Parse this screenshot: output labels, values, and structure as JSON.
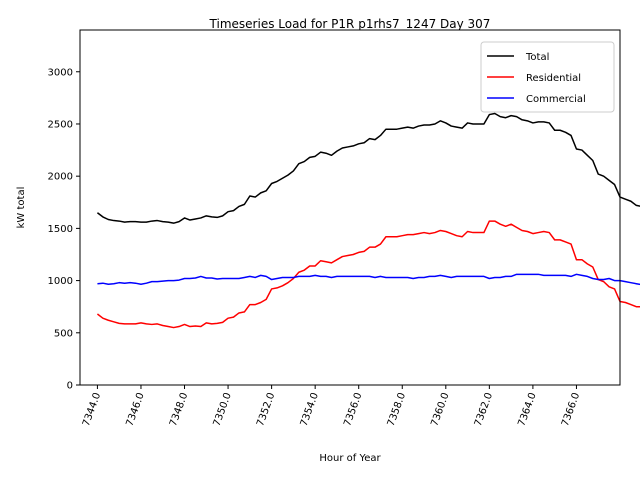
{
  "chart_data": {
    "type": "line",
    "title": "Timeseries Load for P1R p1rhs7_1247  Day 307",
    "xlabel": "Hour of Year",
    "ylabel": "kW total",
    "xlim": [
      7343.2,
      7368.0
    ],
    "ylim": [
      0,
      3400
    ],
    "x_ticks": [
      7344,
      7346,
      7348,
      7350,
      7352,
      7354,
      7356,
      7358,
      7360,
      7362,
      7364,
      7366
    ],
    "x_tick_labels": [
      "7344.0",
      "7346.0",
      "7348.0",
      "7350.0",
      "7352.0",
      "7354.0",
      "7356.0",
      "7358.0",
      "7360.0",
      "7362.0",
      "7364.0",
      "7366.0"
    ],
    "y_ticks": [
      0,
      500,
      1000,
      1500,
      2000,
      2500,
      3000
    ],
    "y_tick_labels": [
      "0",
      "500",
      "1000",
      "1500",
      "2000",
      "2500",
      "3000"
    ],
    "legend_position": "top-right",
    "x_start": 7344.0,
    "x_step": 0.25,
    "series": [
      {
        "name": "Total",
        "color": "#000000",
        "values": [
          1650,
          1610,
          1585,
          1575,
          1570,
          1560,
          1565,
          1565,
          1560,
          1560,
          1570,
          1575,
          1565,
          1560,
          1550,
          1565,
          1600,
          1580,
          1590,
          1600,
          1620,
          1610,
          1605,
          1620,
          1660,
          1670,
          1710,
          1730,
          1810,
          1800,
          1840,
          1860,
          1930,
          1950,
          1980,
          2010,
          2050,
          2120,
          2140,
          2180,
          2190,
          2230,
          2220,
          2200,
          2240,
          2270,
          2280,
          2290,
          2310,
          2320,
          2360,
          2350,
          2390,
          2450,
          2450,
          2450,
          2460,
          2470,
          2460,
          2480,
          2490,
          2490,
          2500,
          2530,
          2510,
          2480,
          2470,
          2460,
          2510,
          2500,
          2500,
          2500,
          2590,
          2600,
          2570,
          2560,
          2580,
          2570,
          2540,
          2530,
          2510,
          2520,
          2520,
          2510,
          2440,
          2440,
          2420,
          2390,
          2260,
          2250,
          2200,
          2150,
          2020,
          2000,
          1960,
          1920,
          1800,
          1780,
          1760,
          1720,
          1710
        ]
      },
      {
        "name": "Residential",
        "color": "#ff0000",
        "values": [
          680,
          640,
          620,
          605,
          590,
          585,
          585,
          585,
          595,
          585,
          580,
          585,
          570,
          560,
          550,
          560,
          580,
          560,
          565,
          560,
          595,
          585,
          590,
          600,
          640,
          650,
          690,
          700,
          770,
          770,
          790,
          820,
          920,
          930,
          950,
          980,
          1020,
          1080,
          1100,
          1140,
          1140,
          1190,
          1180,
          1170,
          1200,
          1230,
          1240,
          1250,
          1270,
          1280,
          1320,
          1320,
          1350,
          1420,
          1420,
          1420,
          1430,
          1440,
          1440,
          1450,
          1460,
          1450,
          1460,
          1480,
          1470,
          1450,
          1430,
          1420,
          1470,
          1460,
          1460,
          1460,
          1570,
          1570,
          1540,
          1520,
          1540,
          1510,
          1480,
          1470,
          1450,
          1460,
          1470,
          1460,
          1390,
          1390,
          1370,
          1350,
          1200,
          1200,
          1160,
          1130,
          1010,
          990,
          940,
          920,
          800,
          790,
          770,
          750,
          750
        ]
      },
      {
        "name": "Commercial",
        "color": "#0000ff",
        "values": [
          970,
          975,
          965,
          970,
          980,
          975,
          980,
          975,
          965,
          975,
          990,
          990,
          995,
          1000,
          1000,
          1005,
          1020,
          1020,
          1025,
          1040,
          1025,
          1025,
          1015,
          1020,
          1020,
          1020,
          1020,
          1030,
          1040,
          1030,
          1050,
          1040,
          1010,
          1020,
          1030,
          1030,
          1030,
          1040,
          1040,
          1040,
          1050,
          1040,
          1040,
          1030,
          1040,
          1040,
          1040,
          1040,
          1040,
          1040,
          1040,
          1030,
          1040,
          1030,
          1030,
          1030,
          1030,
          1030,
          1020,
          1030,
          1030,
          1040,
          1040,
          1050,
          1040,
          1030,
          1040,
          1040,
          1040,
          1040,
          1040,
          1040,
          1020,
          1030,
          1030,
          1040,
          1040,
          1060,
          1060,
          1060,
          1060,
          1060,
          1050,
          1050,
          1050,
          1050,
          1050,
          1040,
          1060,
          1050,
          1040,
          1020,
          1010,
          1010,
          1020,
          1000,
          1000,
          990,
          980,
          970,
          960
        ]
      }
    ]
  }
}
